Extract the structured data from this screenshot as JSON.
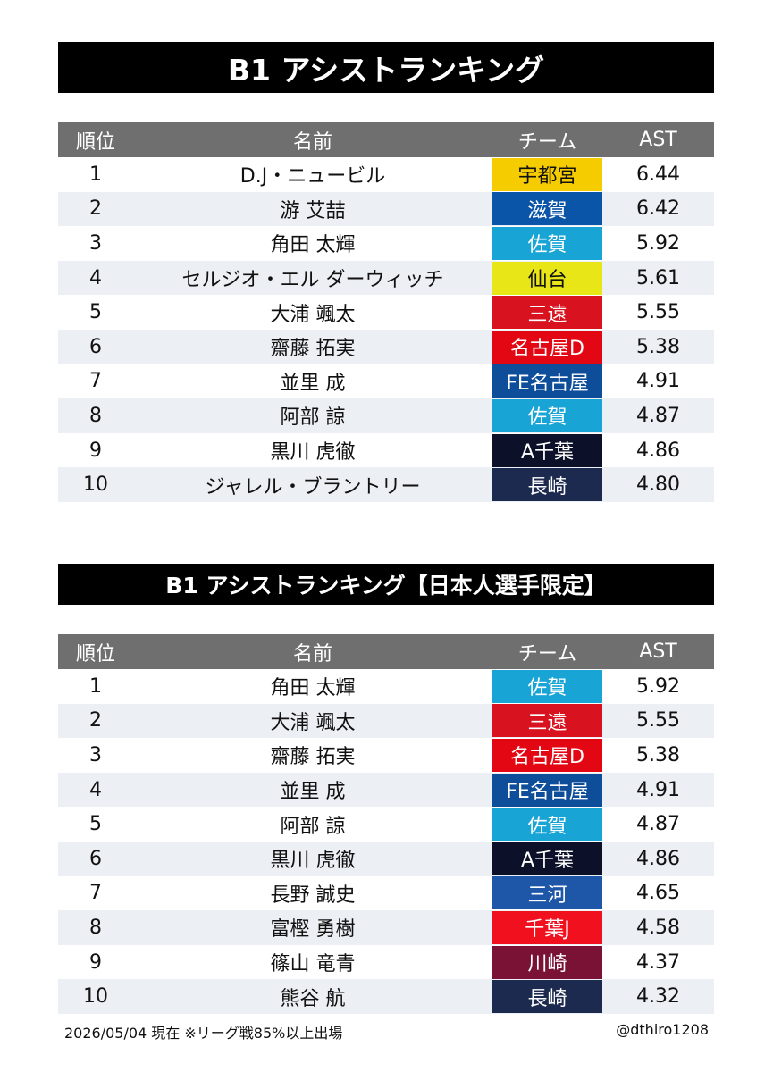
{
  "title1": "B1 アシストランキング",
  "title2": "B1 アシストランキング【日本人選手限定】",
  "headers": {
    "rank": "順位",
    "name": "名前",
    "team": "チーム",
    "ast": "AST"
  },
  "table1": [
    {
      "rank": "1",
      "name": "D.J・ニュービル",
      "team": "宇都宮",
      "ast": "6.44",
      "team_bg": "#f5cc00",
      "team_fg": "#111111"
    },
    {
      "rank": "2",
      "name": "游 艾喆",
      "team": "滋賀",
      "ast": "6.42",
      "team_bg": "#0b55a8",
      "team_fg": "#ffffff"
    },
    {
      "rank": "3",
      "name": "角田 太輝",
      "team": "佐賀",
      "ast": "5.92",
      "team_bg": "#19a4d6",
      "team_fg": "#ffffff"
    },
    {
      "rank": "4",
      "name": "セルジオ・エル ダーウィッチ",
      "team": "仙台",
      "ast": "5.61",
      "team_bg": "#e8e617",
      "team_fg": "#111111"
    },
    {
      "rank": "5",
      "name": "大浦 颯太",
      "team": "三遠",
      "ast": "5.55",
      "team_bg": "#d9121f",
      "team_fg": "#ffffff"
    },
    {
      "rank": "6",
      "name": "齋藤 拓実",
      "team": "名古屋D",
      "ast": "5.38",
      "team_bg": "#e30613",
      "team_fg": "#ffffff"
    },
    {
      "rank": "7",
      "name": "並里 成",
      "team": "FE名古屋",
      "ast": "4.91",
      "team_bg": "#0d4d9a",
      "team_fg": "#ffffff"
    },
    {
      "rank": "8",
      "name": "阿部 諒",
      "team": "佐賀",
      "ast": "4.87",
      "team_bg": "#19a4d6",
      "team_fg": "#ffffff"
    },
    {
      "rank": "9",
      "name": "黒川 虎徹",
      "team": "A千葉",
      "ast": "4.86",
      "team_bg": "#0c1129",
      "team_fg": "#ffffff"
    },
    {
      "rank": "10",
      "name": "ジャレル・ブラントリー",
      "team": "長崎",
      "ast": "4.80",
      "team_bg": "#1b2a4e",
      "team_fg": "#ffffff"
    }
  ],
  "table2": [
    {
      "rank": "1",
      "name": "角田 太輝",
      "team": "佐賀",
      "ast": "5.92",
      "team_bg": "#19a4d6",
      "team_fg": "#ffffff"
    },
    {
      "rank": "2",
      "name": "大浦 颯太",
      "team": "三遠",
      "ast": "5.55",
      "team_bg": "#d9121f",
      "team_fg": "#ffffff"
    },
    {
      "rank": "3",
      "name": "齋藤 拓実",
      "team": "名古屋D",
      "ast": "5.38",
      "team_bg": "#e30613",
      "team_fg": "#ffffff"
    },
    {
      "rank": "4",
      "name": "並里 成",
      "team": "FE名古屋",
      "ast": "4.91",
      "team_bg": "#0d4d9a",
      "team_fg": "#ffffff"
    },
    {
      "rank": "5",
      "name": "阿部 諒",
      "team": "佐賀",
      "ast": "4.87",
      "team_bg": "#19a4d6",
      "team_fg": "#ffffff"
    },
    {
      "rank": "6",
      "name": "黒川 虎徹",
      "team": "A千葉",
      "ast": "4.86",
      "team_bg": "#0c1129",
      "team_fg": "#ffffff"
    },
    {
      "rank": "7",
      "name": "長野 誠史",
      "team": "三河",
      "ast": "4.65",
      "team_bg": "#1e56a8",
      "team_fg": "#ffffff"
    },
    {
      "rank": "8",
      "name": "富樫 勇樹",
      "team": "千葉J",
      "ast": "4.58",
      "team_bg": "#f0101e",
      "team_fg": "#ffffff"
    },
    {
      "rank": "9",
      "name": "篠山 竜青",
      "team": "川崎",
      "ast": "4.37",
      "team_bg": "#7a1236",
      "team_fg": "#ffffff"
    },
    {
      "rank": "10",
      "name": "熊谷 航",
      "team": "長崎",
      "ast": "4.32",
      "team_bg": "#1b2a4e",
      "team_fg": "#ffffff"
    }
  ],
  "footer": {
    "note": "2026/05/04 現在 ※リーグ戦85%以上出場",
    "handle": "@dthiro1208"
  }
}
